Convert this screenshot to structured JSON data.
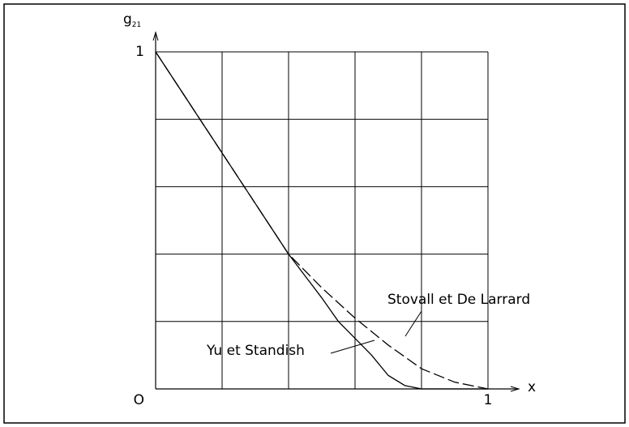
{
  "chart_data": {
    "type": "line",
    "ylabel": "g",
    "ylabel_sub": "21",
    "xlabel": "x",
    "origin_label": "O",
    "xlim": [
      0,
      1
    ],
    "ylim": [
      0,
      1
    ],
    "xticks": [
      {
        "value": 0.2,
        "label": null
      },
      {
        "value": 0.4,
        "label": null
      },
      {
        "value": 0.6,
        "label": null
      },
      {
        "value": 0.8,
        "label": null
      },
      1
    ],
    "yticks": [
      {
        "value": 0.2,
        "label": null
      },
      {
        "value": 0.4,
        "label": null
      },
      {
        "value": 0.6,
        "label": null
      },
      {
        "value": 0.8,
        "label": null
      },
      1
    ],
    "grid": true,
    "series": [
      {
        "name": "Yu et Standish",
        "color": "#000000",
        "dashed": false,
        "x": [
          0,
          0.1,
          0.2,
          0.3,
          0.4,
          0.5,
          0.55,
          0.6,
          0.65,
          0.7,
          0.75,
          0.8,
          1
        ],
        "values": [
          1,
          0.85,
          0.7,
          0.55,
          0.4,
          0.27,
          0.2,
          0.15,
          0.1,
          0.04,
          0.01,
          0,
          0
        ]
      },
      {
        "name": "Stovall et De Larrard",
        "color": "#000000",
        "dashed": true,
        "x": [
          0,
          0.1,
          0.2,
          0.3,
          0.4,
          0.5,
          0.6,
          0.7,
          0.8,
          0.9,
          1
        ],
        "values": [
          1,
          0.85,
          0.7,
          0.55,
          0.4,
          0.3,
          0.21,
          0.13,
          0.06,
          0.02,
          0
        ]
      }
    ]
  }
}
